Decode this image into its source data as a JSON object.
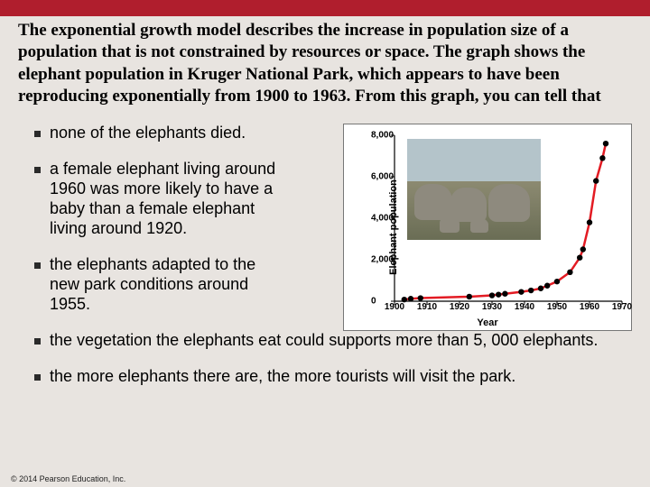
{
  "question": "The exponential growth model describes the increase in population size of a population that is not constrained by resources or space. The graph shows the elephant population in Kruger National Park, which appears to have been reproducing exponentially from 1900 to 1963. From this graph, you can tell that",
  "options": [
    "none of the elephants died.",
    "a female elephant living around 1960 was more likely to have a baby than a female elephant living around 1920.",
    "the elephants adapted to the new park conditions around 1955.",
    "the vegetation the elephants eat could supports more than 5, 000 elephants.",
    "the more elephants there are, the more tourists will visit the park."
  ],
  "chart": {
    "type": "line",
    "ylabel": "Elephant population",
    "xlabel": "Year",
    "ylim": [
      0,
      8000
    ],
    "yticks": [
      0,
      2000,
      4000,
      6000,
      8000
    ],
    "ytick_labels": [
      "0",
      "2,000",
      "4,000",
      "6,000",
      "8,000"
    ],
    "xlim": [
      1900,
      1970
    ],
    "xticks": [
      1900,
      1910,
      1920,
      1930,
      1940,
      1950,
      1960,
      1970
    ],
    "line_color": "#e31b23",
    "line_width": 2.5,
    "point_color": "#000000",
    "point_radius": 3.2,
    "background_color": "#ffffff",
    "series": [
      {
        "x": 1903,
        "y": 80
      },
      {
        "x": 1905,
        "y": 120
      },
      {
        "x": 1908,
        "y": 150
      },
      {
        "x": 1923,
        "y": 220
      },
      {
        "x": 1930,
        "y": 280
      },
      {
        "x": 1932,
        "y": 320
      },
      {
        "x": 1934,
        "y": 360
      },
      {
        "x": 1939,
        "y": 450
      },
      {
        "x": 1942,
        "y": 520
      },
      {
        "x": 1945,
        "y": 620
      },
      {
        "x": 1947,
        "y": 750
      },
      {
        "x": 1950,
        "y": 950
      },
      {
        "x": 1954,
        "y": 1400
      },
      {
        "x": 1957,
        "y": 2100
      },
      {
        "x": 1958,
        "y": 2500
      },
      {
        "x": 1960,
        "y": 3800
      },
      {
        "x": 1962,
        "y": 5800
      },
      {
        "x": 1964,
        "y": 6900
      },
      {
        "x": 1965,
        "y": 7600
      }
    ]
  },
  "footer": "© 2014 Pearson Education, Inc."
}
